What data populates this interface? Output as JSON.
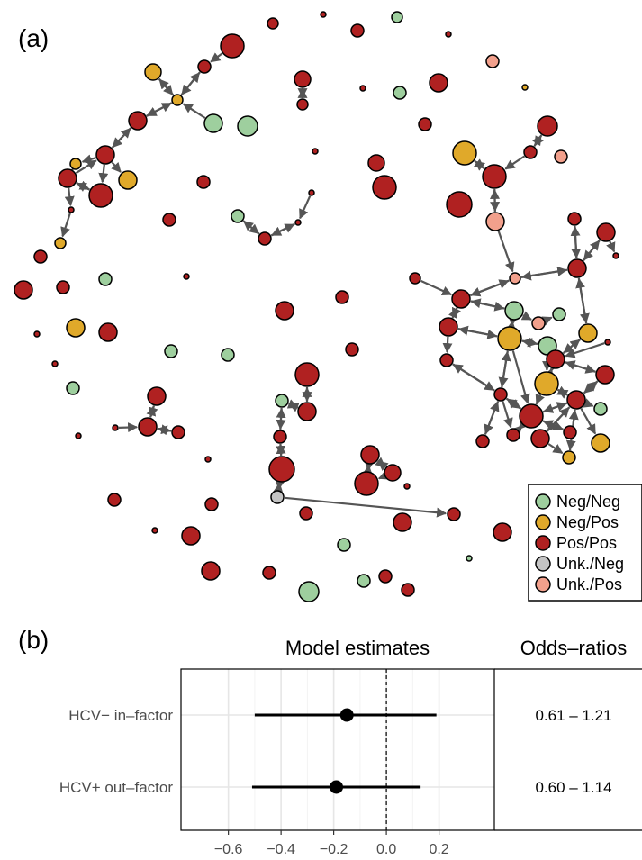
{
  "chart_data": [
    {
      "panel": "(a)",
      "type": "network",
      "legend": {
        "entries": [
          {
            "label": "Neg/Neg",
            "color": "#9ecf9e"
          },
          {
            "label": "Neg/Pos",
            "color": "#e0a92a"
          },
          {
            "label": "Pos/Pos",
            "color": "#b02121"
          },
          {
            "label": "Unk./Neg",
            "color": "#c4c4c4"
          },
          {
            "label": "Unk./Pos",
            "color": "#f2a08c"
          }
        ],
        "placement": "bottom-right"
      }
    },
    {
      "panel": "(b)",
      "type": "forest",
      "header_left": "Model estimates",
      "header_right": "Odds–ratios",
      "rows": [
        {
          "label": "HCV− in–factor",
          "estimate": -0.15,
          "ci": [
            -0.5,
            0.19
          ],
          "odds_ratio": "0.61 – 1.21"
        },
        {
          "label": "HCV+ out–factor",
          "estimate": -0.19,
          "ci": [
            -0.51,
            0.13
          ],
          "odds_ratio": "0.60 – 1.14"
        }
      ],
      "xlim": [
        -0.78,
        0.41
      ],
      "x_ticks": [
        -0.6,
        -0.4,
        -0.2,
        0.0,
        0.2
      ],
      "x_tick_labels": [
        "−0.6",
        "−0.4",
        "−0.2",
        "0.0",
        "0.2"
      ],
      "reference_line": 0,
      "grid": true
    }
  ]
}
